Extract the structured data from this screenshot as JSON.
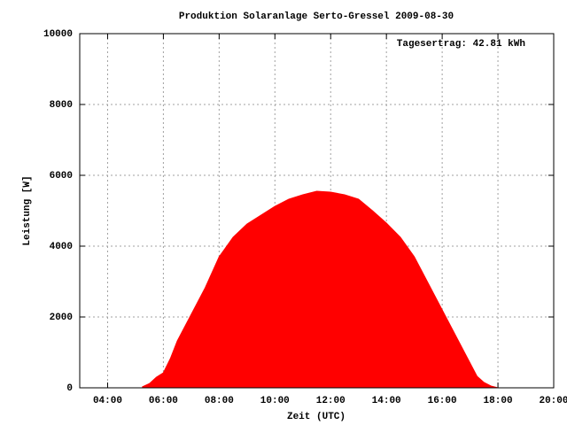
{
  "chart_data": {
    "type": "area",
    "title": "Produktion Solaranlage Serto-Gressel 2009-08-30",
    "annotation": "Tagesertrag: 42.81 kWh",
    "x_label": "Zeit (UTC)",
    "y_label": "Leistung [W]",
    "color": "#ff0000",
    "grid": true,
    "xlim": [
      3,
      20
    ],
    "ylim": [
      0,
      10000
    ],
    "xticks": [
      {
        "value": 4,
        "label": "04:00"
      },
      {
        "value": 6,
        "label": "06:00"
      },
      {
        "value": 8,
        "label": "08:00"
      },
      {
        "value": 10,
        "label": "10:00"
      },
      {
        "value": 12,
        "label": "12:00"
      },
      {
        "value": 14,
        "label": "14:00"
      },
      {
        "value": 16,
        "label": "16:00"
      },
      {
        "value": 18,
        "label": "18:00"
      },
      {
        "value": 20,
        "label": "20:00"
      }
    ],
    "yticks": [
      0,
      2000,
      4000,
      6000,
      8000,
      10000
    ],
    "x": [
      5.25,
      5.5,
      5.75,
      6,
      6.25,
      6.5,
      7,
      7.5,
      8,
      8.5,
      9,
      9.5,
      10,
      10.5,
      11,
      11.5,
      12,
      12.5,
      13,
      13.5,
      14,
      14.5,
      15,
      15.5,
      16,
      16.5,
      17,
      17.25,
      17.5,
      17.75,
      18
    ],
    "values": [
      30,
      120,
      300,
      425,
      825,
      1325,
      2075,
      2825,
      3700,
      4250,
      4625,
      4875,
      5125,
      5325,
      5450,
      5550,
      5525,
      5450,
      5325,
      5000,
      4650,
      4250,
      3700,
      2950,
      2200,
      1450,
      700,
      325,
      150,
      50,
      0
    ]
  }
}
